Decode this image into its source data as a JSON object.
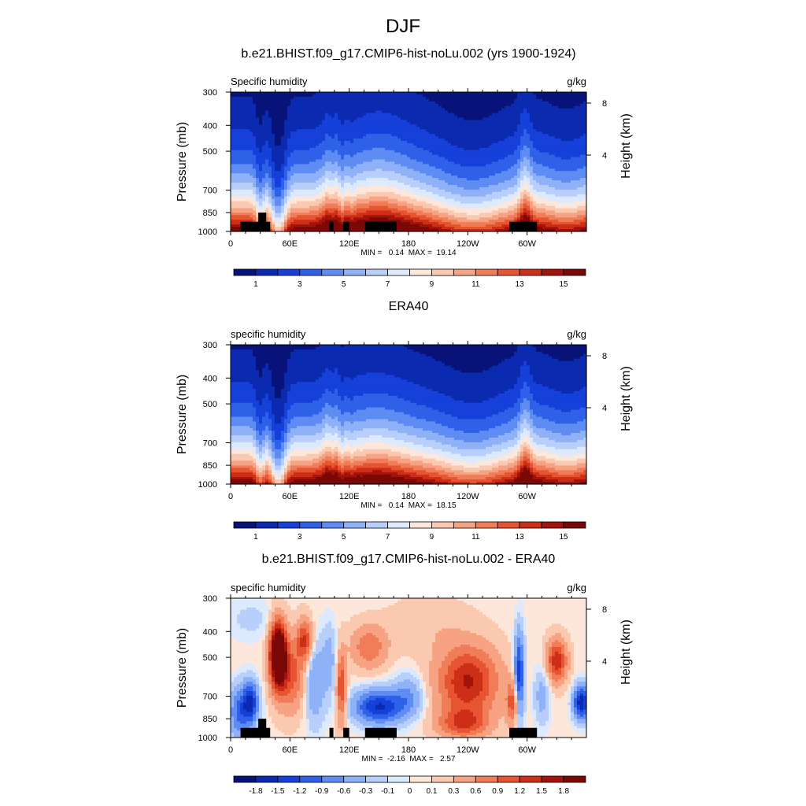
{
  "figure": {
    "title": "DJF"
  },
  "colors": {
    "diverging_palette": [
      "#08137a",
      "#0b2ab0",
      "#1540d9",
      "#2e60e8",
      "#5f8cf2",
      "#8fb1f8",
      "#b8cffb",
      "#dde9fd",
      "#fde7da",
      "#fbc8b0",
      "#f7a383",
      "#f07c58",
      "#e65432",
      "#cc2e17",
      "#a2130b",
      "#7a0806"
    ]
  },
  "chart_data": [
    {
      "type": "heatmap",
      "title": "b.e21.BHIST.f09_g17.CMIP6-hist-noLu.002 (yrs 1900-1924)",
      "left_label": "Specific humidity",
      "right_label": "g/kg",
      "ylabel": "Pressure (mb)",
      "y2label": "Height (km)",
      "y_ticks": [
        300,
        400,
        500,
        700,
        850,
        1000
      ],
      "y2_ticks": [
        "8",
        "4"
      ],
      "x_ticks": [
        "0",
        "60E",
        "120E",
        "180",
        "120W",
        "60W"
      ],
      "x_range": [
        0,
        360
      ],
      "y_range": [
        300,
        1000
      ],
      "y_scale": "log",
      "min_label": "MIN =   0.14  MAX =  19.14",
      "colorbar_labels": [
        "1",
        "3",
        "5",
        "7",
        "9",
        "11",
        "13",
        "15"
      ]
    },
    {
      "type": "heatmap",
      "title": "ERA40",
      "left_label": "specific humidity",
      "right_label": "g/kg",
      "ylabel": "Pressure (mb)",
      "y2label": "Height (km)",
      "y_ticks": [
        300,
        400,
        500,
        700,
        850,
        1000
      ],
      "y2_ticks": [
        "8",
        "4"
      ],
      "x_ticks": [
        "0",
        "60E",
        "120E",
        "180",
        "120W",
        "60W"
      ],
      "x_range": [
        0,
        360
      ],
      "y_range": [
        300,
        1000
      ],
      "y_scale": "log",
      "min_label": "MIN =   0.14  MAX =  18.15",
      "colorbar_labels": [
        "1",
        "3",
        "5",
        "7",
        "9",
        "11",
        "13",
        "15"
      ]
    },
    {
      "type": "heatmap",
      "title": "b.e21.BHIST.f09_g17.CMIP6-hist-noLu.002 - ERA40",
      "left_label": "specific humidity",
      "right_label": "g/kg",
      "ylabel": "Pressure (mb)",
      "y2label": "Height (km)",
      "y_ticks": [
        300,
        400,
        500,
        700,
        850,
        1000
      ],
      "y2_ticks": [
        "8",
        "4"
      ],
      "x_ticks": [
        "0",
        "60E",
        "120E",
        "180",
        "120W",
        "60W"
      ],
      "x_range": [
        0,
        360
      ],
      "y_range": [
        300,
        1000
      ],
      "y_scale": "log",
      "min_label": "MIN =  -2.16  MAX =   2.57",
      "colorbar_labels": [
        "-1.8",
        "-1.5",
        "-1.2",
        "-0.9",
        "-0.6",
        "-0.3",
        "-0.1",
        "0",
        "0.1",
        "0.3",
        "0.6",
        "0.9",
        "1.2",
        "1.5",
        "1.8"
      ]
    }
  ]
}
